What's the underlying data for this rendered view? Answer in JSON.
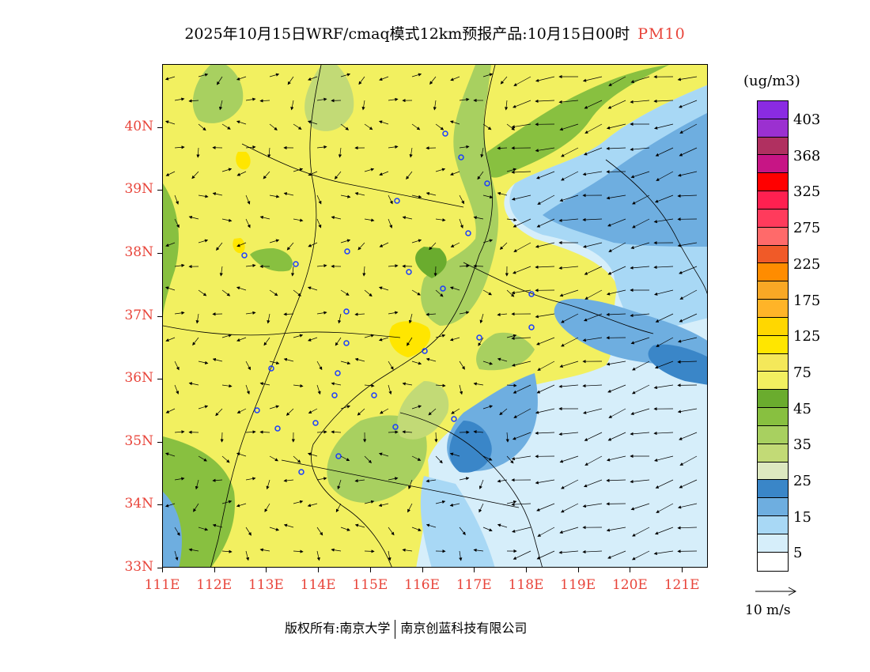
{
  "title": {
    "main": "2025年10月15日WRF/cmaq模式12km预报产品:10月15日00时",
    "pollutant": "PM10"
  },
  "map": {
    "lat_labels": [
      "40N",
      "39N",
      "38N",
      "37N",
      "36N",
      "35N",
      "34N",
      "33N"
    ],
    "lon_labels": [
      "111E",
      "112E",
      "113E",
      "114E",
      "115E",
      "116E",
      "117E",
      "118E",
      "119E",
      "120E",
      "121E"
    ],
    "lat_range": [
      33,
      41
    ],
    "lon_range": [
      111,
      121.5
    ]
  },
  "colorbar": {
    "unit": "(ug/m3)",
    "colors_top_to_bottom": [
      "#8a2be2",
      "#9b30d0",
      "#b03060",
      "#c71585",
      "#ff0000",
      "#ff2050",
      "#ff3b5c",
      "#ff6a6a",
      "#f05a28",
      "#ff8c00",
      "#f9a825",
      "#ffb428",
      "#ffd700",
      "#ffe600",
      "#f4e85a",
      "#f2f060",
      "#6aac2e",
      "#88c040",
      "#a8d060",
      "#c2da76",
      "#dde8c0",
      "#3a86c8",
      "#6eaee0",
      "#a8d8f5",
      "#d6eefa",
      "#ffffff"
    ],
    "labels": [
      "403",
      "368",
      "325",
      "275",
      "225",
      "175",
      "125",
      "75",
      "45",
      "35",
      "25",
      "15",
      "5"
    ]
  },
  "wind_key": {
    "label": "10 m/s"
  },
  "footer": {
    "left": "版权所有:南京大学",
    "right": "南京创蓝科技有限公司"
  }
}
